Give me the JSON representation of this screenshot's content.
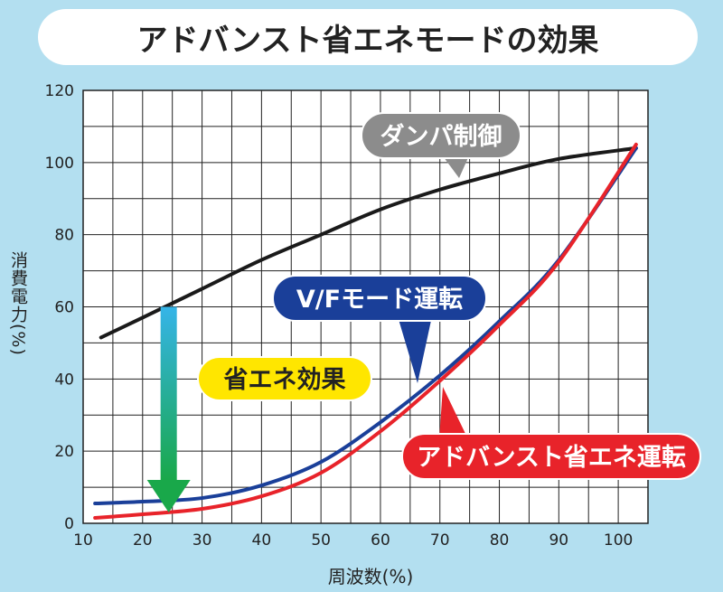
{
  "title": "アドバンスト省エネモードの効果",
  "chart_data": {
    "type": "line",
    "xlabel": "周波数(%)",
    "ylabel": "消費電力(%)",
    "xlim": [
      10,
      105
    ],
    "ylim": [
      0,
      120
    ],
    "x_ticks": [
      10,
      20,
      30,
      40,
      50,
      60,
      70,
      80,
      90,
      100
    ],
    "y_ticks": [
      0,
      20,
      40,
      60,
      80,
      100,
      120
    ],
    "grid": true,
    "series": [
      {
        "name": "ダンパ制御",
        "color": "#1a1a1a",
        "x": [
          13,
          20,
          30,
          40,
          50,
          60,
          70,
          80,
          90,
          103
        ],
        "y": [
          51.5,
          57,
          65,
          73,
          80,
          87,
          92.5,
          97,
          101,
          104
        ]
      },
      {
        "name": "V/Fモード運転",
        "color": "#1a3f99",
        "x": [
          12,
          20,
          30,
          40,
          50,
          60,
          70,
          80,
          90,
          103
        ],
        "y": [
          5.5,
          6,
          7,
          10.5,
          17,
          28,
          41,
          56,
          73,
          104
        ]
      },
      {
        "name": "アドバンスト省エネ運転",
        "color": "#e8232a",
        "x": [
          12,
          20,
          30,
          40,
          50,
          60,
          70,
          80,
          90,
          103
        ],
        "y": [
          1.5,
          2.5,
          4,
          7.5,
          14,
          25.5,
          39.5,
          55,
          72.5,
          105
        ]
      }
    ],
    "annotations": [
      {
        "text": "省エネ効果",
        "style": "yellow-pill",
        "arrow": "down",
        "x": 25,
        "y_from": 60,
        "y_to": 3
      }
    ]
  },
  "colors": {
    "background": "#b3dff0",
    "dampa_pill": "#8c8c8c",
    "vf_pill": "#1a3f99",
    "advanced_pill": "#e8232a",
    "effect_pill": "#ffe600"
  }
}
